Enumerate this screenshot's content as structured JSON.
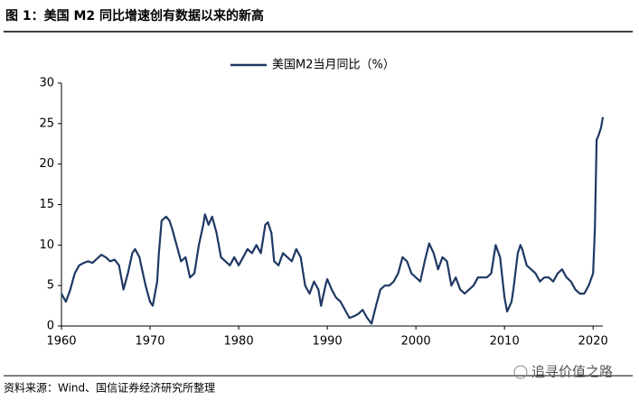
{
  "chart_data": {
    "type": "line",
    "title": "图 1：美国 M2 同比增速创有数据以来的新高",
    "source": "资料来源：Wind、国信证券经济研究所整理",
    "watermark": "追寻价值之路",
    "legend": "top",
    "x": [
      1960,
      1960.5,
      1961,
      1961.5,
      1962,
      1962.5,
      1963,
      1963.5,
      1964,
      1964.5,
      1965,
      1965.5,
      1966,
      1966.5,
      1967,
      1967.5,
      1968,
      1968.3,
      1968.8,
      1969,
      1969.5,
      1970,
      1970.3,
      1970.8,
      1971,
      1971.3,
      1971.8,
      1972.2,
      1972.5,
      1973,
      1973.5,
      1974,
      1974.5,
      1975,
      1975.5,
      1976,
      1976.2,
      1976.6,
      1977,
      1977.5,
      1978,
      1978.5,
      1979,
      1979.5,
      1980,
      1980.5,
      1981,
      1981.5,
      1982,
      1982.5,
      1983,
      1983.3,
      1983.7,
      1984,
      1984.5,
      1985,
      1985.5,
      1986,
      1986.5,
      1987,
      1987.5,
      1988,
      1988.5,
      1989,
      1989.3,
      1989.8,
      1990,
      1990.5,
      1991,
      1991.5,
      1992,
      1992.5,
      1993,
      1993.5,
      1994,
      1994.5,
      1995,
      1995.5,
      1996,
      1996.5,
      1997,
      1997.5,
      1998,
      1998.5,
      1999,
      1999.5,
      2000,
      2000.5,
      2001,
      2001.5,
      2002,
      2002.5,
      2003,
      2003.5,
      2004,
      2004.5,
      2005,
      2005.5,
      2006,
      2006.5,
      2007,
      2007.5,
      2008,
      2008.5,
      2009,
      2009.5,
      2010,
      2010.3,
      2010.8,
      2011,
      2011.5,
      2011.8,
      2012,
      2012.5,
      2013,
      2013.5,
      2014,
      2014.5,
      2015,
      2015.5,
      2016,
      2016.5,
      2017,
      2017.5,
      2018,
      2018.5,
      2019,
      2019.5,
      2020,
      2020.2,
      2020.4,
      2020.6,
      2020.9,
      2021.1
    ],
    "series": [
      {
        "name": "美国M2当月同比（%）",
        "color": "#1f3864",
        "values": [
          4.0,
          3.0,
          4.5,
          6.5,
          7.5,
          7.8,
          8.0,
          7.8,
          8.3,
          8.8,
          8.5,
          8.0,
          8.2,
          7.5,
          4.5,
          6.5,
          9.0,
          9.5,
          8.5,
          7.5,
          5.0,
          3.0,
          2.5,
          5.5,
          9.0,
          13.0,
          13.5,
          13.0,
          12.0,
          10.0,
          8.0,
          8.5,
          6.0,
          6.5,
          10.0,
          12.5,
          13.8,
          12.5,
          13.5,
          11.5,
          8.5,
          8.0,
          7.5,
          8.5,
          7.5,
          8.5,
          9.5,
          9.0,
          10.0,
          9.0,
          12.5,
          12.8,
          11.5,
          8.0,
          7.5,
          9.0,
          8.5,
          8.0,
          9.5,
          8.5,
          5.0,
          4.0,
          5.5,
          4.5,
          2.5,
          5.0,
          5.8,
          4.5,
          3.5,
          3.0,
          2.0,
          1.0,
          1.2,
          1.5,
          2.0,
          1.0,
          0.3,
          2.5,
          4.5,
          5.0,
          5.0,
          5.5,
          6.5,
          8.5,
          8.0,
          6.5,
          6.0,
          5.5,
          8.0,
          10.2,
          9.0,
          7.0,
          8.5,
          8.0,
          5.0,
          6.0,
          4.5,
          4.0,
          4.5,
          5.0,
          6.0,
          6.0,
          6.0,
          6.5,
          10.0,
          8.5,
          3.5,
          1.8,
          3.0,
          4.5,
          9.0,
          10.0,
          9.5,
          7.5,
          7.0,
          6.5,
          5.5,
          6.0,
          6.0,
          5.5,
          6.5,
          7.0,
          6.0,
          5.5,
          4.5,
          4.0,
          4.0,
          5.0,
          6.5,
          12.0,
          23.0,
          23.5,
          24.5,
          25.8
        ]
      }
    ],
    "xlim": [
      1960,
      2021.1
    ],
    "xticks": [
      1960,
      1970,
      1980,
      1990,
      2000,
      2010,
      2020
    ],
    "ylim": [
      0,
      30
    ],
    "yticks": [
      0,
      5,
      10,
      15,
      20,
      25,
      30
    ]
  }
}
